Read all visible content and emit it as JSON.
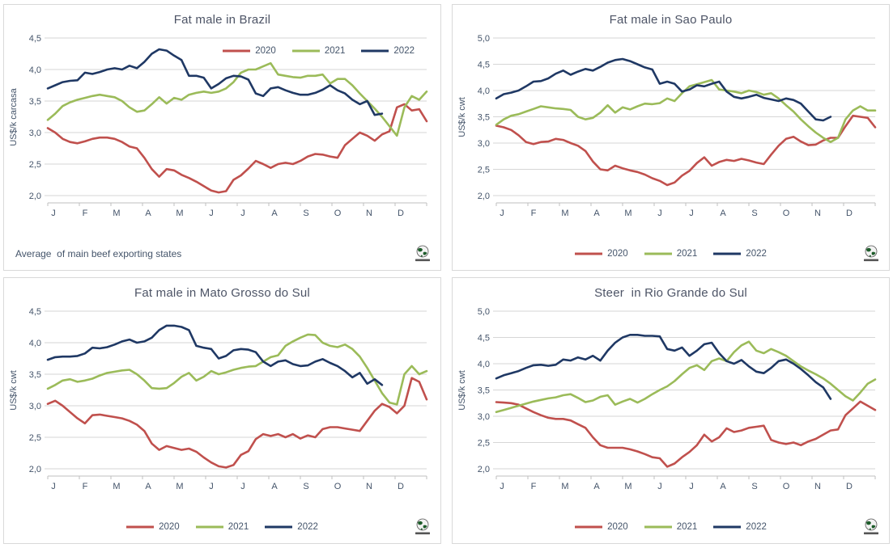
{
  "colors": {
    "red": "#C0504D",
    "green": "#9BBB59",
    "navy": "#1F3864",
    "grid": "#D6D6D6",
    "axis": "#BFBFBF",
    "tick_text": "#44546A",
    "title_text": "#4D5466"
  },
  "months": [
    "J",
    "F",
    "M",
    "A",
    "M",
    "J",
    "J",
    "A",
    "S",
    "O",
    "N",
    "D"
  ],
  "logo_name": "globe-logo",
  "chart_data": [
    {
      "type": "line",
      "title": "Fat male in Brazil",
      "ylabel": "US$/k carcasa",
      "x_unit": "weeks Jan-Dec",
      "ylim": [
        2.0,
        4.5
      ],
      "ytick_step": 0.5,
      "ytick_labels": [
        "2,0",
        "2,5",
        "3,0",
        "3,5",
        "4,0",
        "4,5"
      ],
      "legend_position": "top-right-inside",
      "note": "Average  of main beef exporting states",
      "series": [
        {
          "name": "2020",
          "color": "#C0504D",
          "values": [
            3.07,
            3.0,
            2.9,
            2.85,
            2.83,
            2.86,
            2.9,
            2.92,
            2.92,
            2.9,
            2.85,
            2.78,
            2.75,
            2.6,
            2.42,
            2.3,
            2.42,
            2.4,
            2.33,
            2.28,
            2.22,
            2.15,
            2.08,
            2.05,
            2.07,
            2.25,
            2.32,
            2.43,
            2.55,
            2.5,
            2.44,
            2.5,
            2.52,
            2.5,
            2.55,
            2.62,
            2.66,
            2.65,
            2.62,
            2.6,
            2.8,
            2.9,
            3.0,
            2.95,
            2.87,
            2.97,
            3.02,
            3.4,
            3.45,
            3.35,
            3.37,
            3.18
          ]
        },
        {
          "name": "2021",
          "color": "#9BBB59",
          "values": [
            3.2,
            3.3,
            3.42,
            3.48,
            3.52,
            3.55,
            3.58,
            3.6,
            3.58,
            3.56,
            3.5,
            3.4,
            3.33,
            3.35,
            3.45,
            3.56,
            3.46,
            3.55,
            3.52,
            3.6,
            3.63,
            3.65,
            3.63,
            3.65,
            3.7,
            3.8,
            3.95,
            4.0,
            4.0,
            4.05,
            4.1,
            3.92,
            3.9,
            3.88,
            3.87,
            3.9,
            3.9,
            3.92,
            3.78,
            3.85,
            3.85,
            3.75,
            3.62,
            3.5,
            3.38,
            3.25,
            3.1,
            2.95,
            3.4,
            3.58,
            3.52,
            3.65
          ]
        },
        {
          "name": "2022",
          "color": "#1F3864",
          "values": [
            3.7,
            3.75,
            3.8,
            3.82,
            3.83,
            3.95,
            3.93,
            3.96,
            4.0,
            4.02,
            4.0,
            4.06,
            4.02,
            4.12,
            4.25,
            4.32,
            4.3,
            4.22,
            4.15,
            3.9,
            3.9,
            3.87,
            3.7,
            3.77,
            3.86,
            3.9,
            3.89,
            3.84,
            3.62,
            3.58,
            3.7,
            3.72,
            3.67,
            3.63,
            3.6,
            3.6,
            3.63,
            3.68,
            3.75,
            3.67,
            3.62,
            3.52,
            3.45,
            3.5,
            3.28,
            3.3
          ]
        }
      ]
    },
    {
      "type": "line",
      "title": "Fat male in Sao Paulo",
      "ylabel": "US$/k cwt",
      "x_unit": "weeks Jan-Dec",
      "ylim": [
        2.0,
        5.0
      ],
      "ytick_step": 0.5,
      "ytick_labels": [
        "2,0",
        "2,5",
        "3,0",
        "3,5",
        "4,0",
        "4,5",
        "5,0"
      ],
      "legend_position": "bottom",
      "note": "",
      "series": [
        {
          "name": "2020",
          "color": "#C0504D",
          "values": [
            3.33,
            3.3,
            3.25,
            3.15,
            3.02,
            2.98,
            3.02,
            3.03,
            3.08,
            3.06,
            3.0,
            2.95,
            2.85,
            2.65,
            2.5,
            2.48,
            2.57,
            2.52,
            2.48,
            2.45,
            2.4,
            2.33,
            2.28,
            2.2,
            2.25,
            2.38,
            2.47,
            2.62,
            2.73,
            2.57,
            2.64,
            2.68,
            2.66,
            2.7,
            2.67,
            2.63,
            2.6,
            2.78,
            2.95,
            3.08,
            3.12,
            3.03,
            2.96,
            2.97,
            3.05,
            3.1,
            3.1,
            3.32,
            3.52,
            3.5,
            3.48,
            3.3
          ]
        },
        {
          "name": "2021",
          "color": "#9BBB59",
          "values": [
            3.35,
            3.45,
            3.52,
            3.55,
            3.6,
            3.65,
            3.7,
            3.68,
            3.66,
            3.65,
            3.63,
            3.5,
            3.45,
            3.48,
            3.58,
            3.72,
            3.58,
            3.68,
            3.64,
            3.7,
            3.75,
            3.74,
            3.76,
            3.85,
            3.8,
            3.95,
            4.08,
            4.12,
            4.16,
            4.2,
            4.02,
            4.0,
            3.98,
            3.95,
            4.0,
            3.97,
            3.92,
            3.95,
            3.85,
            3.72,
            3.6,
            3.45,
            3.32,
            3.2,
            3.1,
            3.02,
            3.1,
            3.45,
            3.62,
            3.7,
            3.62,
            3.62
          ]
        },
        {
          "name": "2022",
          "color": "#1F3864",
          "values": [
            3.85,
            3.93,
            3.96,
            4.0,
            4.08,
            4.17,
            4.18,
            4.23,
            4.32,
            4.38,
            4.3,
            4.36,
            4.41,
            4.38,
            4.45,
            4.53,
            4.58,
            4.6,
            4.56,
            4.5,
            4.44,
            4.4,
            4.13,
            4.17,
            4.13,
            3.98,
            4.02,
            4.1,
            4.08,
            4.13,
            4.17,
            3.98,
            3.88,
            3.85,
            3.88,
            3.92,
            3.86,
            3.83,
            3.8,
            3.85,
            3.82,
            3.75,
            3.6,
            3.45,
            3.43,
            3.5
          ]
        }
      ]
    },
    {
      "type": "line",
      "title": "Fat male in Mato Grosso do Sul",
      "ylabel": "US$/k cwt",
      "x_unit": "weeks Jan-Dec",
      "ylim": [
        2.0,
        4.5
      ],
      "ytick_step": 0.5,
      "ytick_labels": [
        "2,0",
        "2,5",
        "3,0",
        "3,5",
        "4,0",
        "4,5"
      ],
      "legend_position": "bottom",
      "note": "",
      "series": [
        {
          "name": "2020",
          "color": "#C0504D",
          "values": [
            3.03,
            3.08,
            3.0,
            2.9,
            2.8,
            2.72,
            2.85,
            2.86,
            2.84,
            2.82,
            2.8,
            2.76,
            2.7,
            2.6,
            2.4,
            2.3,
            2.36,
            2.33,
            2.3,
            2.32,
            2.27,
            2.18,
            2.1,
            2.04,
            2.02,
            2.06,
            2.22,
            2.28,
            2.47,
            2.55,
            2.52,
            2.55,
            2.5,
            2.55,
            2.48,
            2.53,
            2.5,
            2.63,
            2.66,
            2.66,
            2.64,
            2.62,
            2.6,
            2.76,
            2.92,
            3.03,
            2.98,
            2.88,
            3.0,
            3.44,
            3.38,
            3.1
          ]
        },
        {
          "name": "2021",
          "color": "#9BBB59",
          "values": [
            3.27,
            3.33,
            3.4,
            3.42,
            3.38,
            3.4,
            3.43,
            3.48,
            3.52,
            3.54,
            3.56,
            3.57,
            3.5,
            3.4,
            3.28,
            3.27,
            3.28,
            3.36,
            3.46,
            3.52,
            3.4,
            3.46,
            3.55,
            3.5,
            3.53,
            3.57,
            3.6,
            3.62,
            3.63,
            3.7,
            3.77,
            3.8,
            3.95,
            4.02,
            4.08,
            4.13,
            4.12,
            4.0,
            3.95,
            3.93,
            3.97,
            3.9,
            3.78,
            3.6,
            3.4,
            3.2,
            3.05,
            3.02,
            3.5,
            3.63,
            3.5,
            3.55
          ]
        },
        {
          "name": "2022",
          "color": "#1F3864",
          "values": [
            3.73,
            3.77,
            3.78,
            3.78,
            3.79,
            3.83,
            3.92,
            3.91,
            3.93,
            3.97,
            4.02,
            4.05,
            4.0,
            4.02,
            4.08,
            4.2,
            4.27,
            4.27,
            4.25,
            4.2,
            3.95,
            3.92,
            3.9,
            3.75,
            3.79,
            3.88,
            3.9,
            3.89,
            3.85,
            3.7,
            3.63,
            3.7,
            3.72,
            3.66,
            3.63,
            3.64,
            3.7,
            3.74,
            3.68,
            3.63,
            3.55,
            3.45,
            3.52,
            3.35,
            3.42,
            3.33
          ]
        }
      ]
    },
    {
      "type": "line",
      "title": "Steer  in Rio Grande do Sul",
      "ylabel": "US$/k cwt",
      "x_unit": "weeks Jan-Dec",
      "ylim": [
        2.0,
        5.0
      ],
      "ytick_step": 0.5,
      "ytick_labels": [
        "2,0",
        "2,5",
        "3,0",
        "3,5",
        "4,0",
        "4,5",
        "5,0"
      ],
      "legend_position": "bottom",
      "note": "",
      "series": [
        {
          "name": "2020",
          "color": "#C0504D",
          "values": [
            3.27,
            3.26,
            3.25,
            3.22,
            3.15,
            3.08,
            3.02,
            2.97,
            2.95,
            2.95,
            2.92,
            2.85,
            2.78,
            2.6,
            2.45,
            2.4,
            2.4,
            2.4,
            2.37,
            2.33,
            2.28,
            2.22,
            2.2,
            2.04,
            2.1,
            2.22,
            2.32,
            2.45,
            2.65,
            2.52,
            2.6,
            2.77,
            2.7,
            2.73,
            2.78,
            2.8,
            2.82,
            2.55,
            2.5,
            2.47,
            2.5,
            2.45,
            2.52,
            2.57,
            2.65,
            2.73,
            2.75,
            3.02,
            3.15,
            3.28,
            3.2,
            3.12
          ]
        },
        {
          "name": "2021",
          "color": "#9BBB59",
          "values": [
            3.08,
            3.12,
            3.16,
            3.2,
            3.24,
            3.28,
            3.31,
            3.34,
            3.36,
            3.4,
            3.42,
            3.35,
            3.27,
            3.3,
            3.37,
            3.4,
            3.22,
            3.28,
            3.33,
            3.26,
            3.33,
            3.42,
            3.5,
            3.57,
            3.67,
            3.8,
            3.92,
            3.97,
            3.88,
            4.05,
            4.1,
            4.05,
            4.22,
            4.35,
            4.42,
            4.25,
            4.2,
            4.28,
            4.22,
            4.15,
            4.05,
            3.95,
            3.87,
            3.8,
            3.72,
            3.62,
            3.5,
            3.38,
            3.3,
            3.45,
            3.62,
            3.7
          ]
        },
        {
          "name": "2022",
          "color": "#1F3864",
          "values": [
            3.72,
            3.78,
            3.82,
            3.86,
            3.92,
            3.97,
            3.98,
            3.96,
            3.98,
            4.08,
            4.06,
            4.12,
            4.08,
            4.15,
            4.06,
            4.25,
            4.4,
            4.5,
            4.55,
            4.55,
            4.53,
            4.53,
            4.52,
            4.28,
            4.25,
            4.31,
            4.15,
            4.25,
            4.37,
            4.4,
            4.2,
            4.05,
            4.0,
            4.07,
            3.95,
            3.85,
            3.82,
            3.92,
            4.05,
            4.08,
            4.0,
            3.9,
            3.78,
            3.65,
            3.55,
            3.33
          ]
        }
      ]
    }
  ]
}
